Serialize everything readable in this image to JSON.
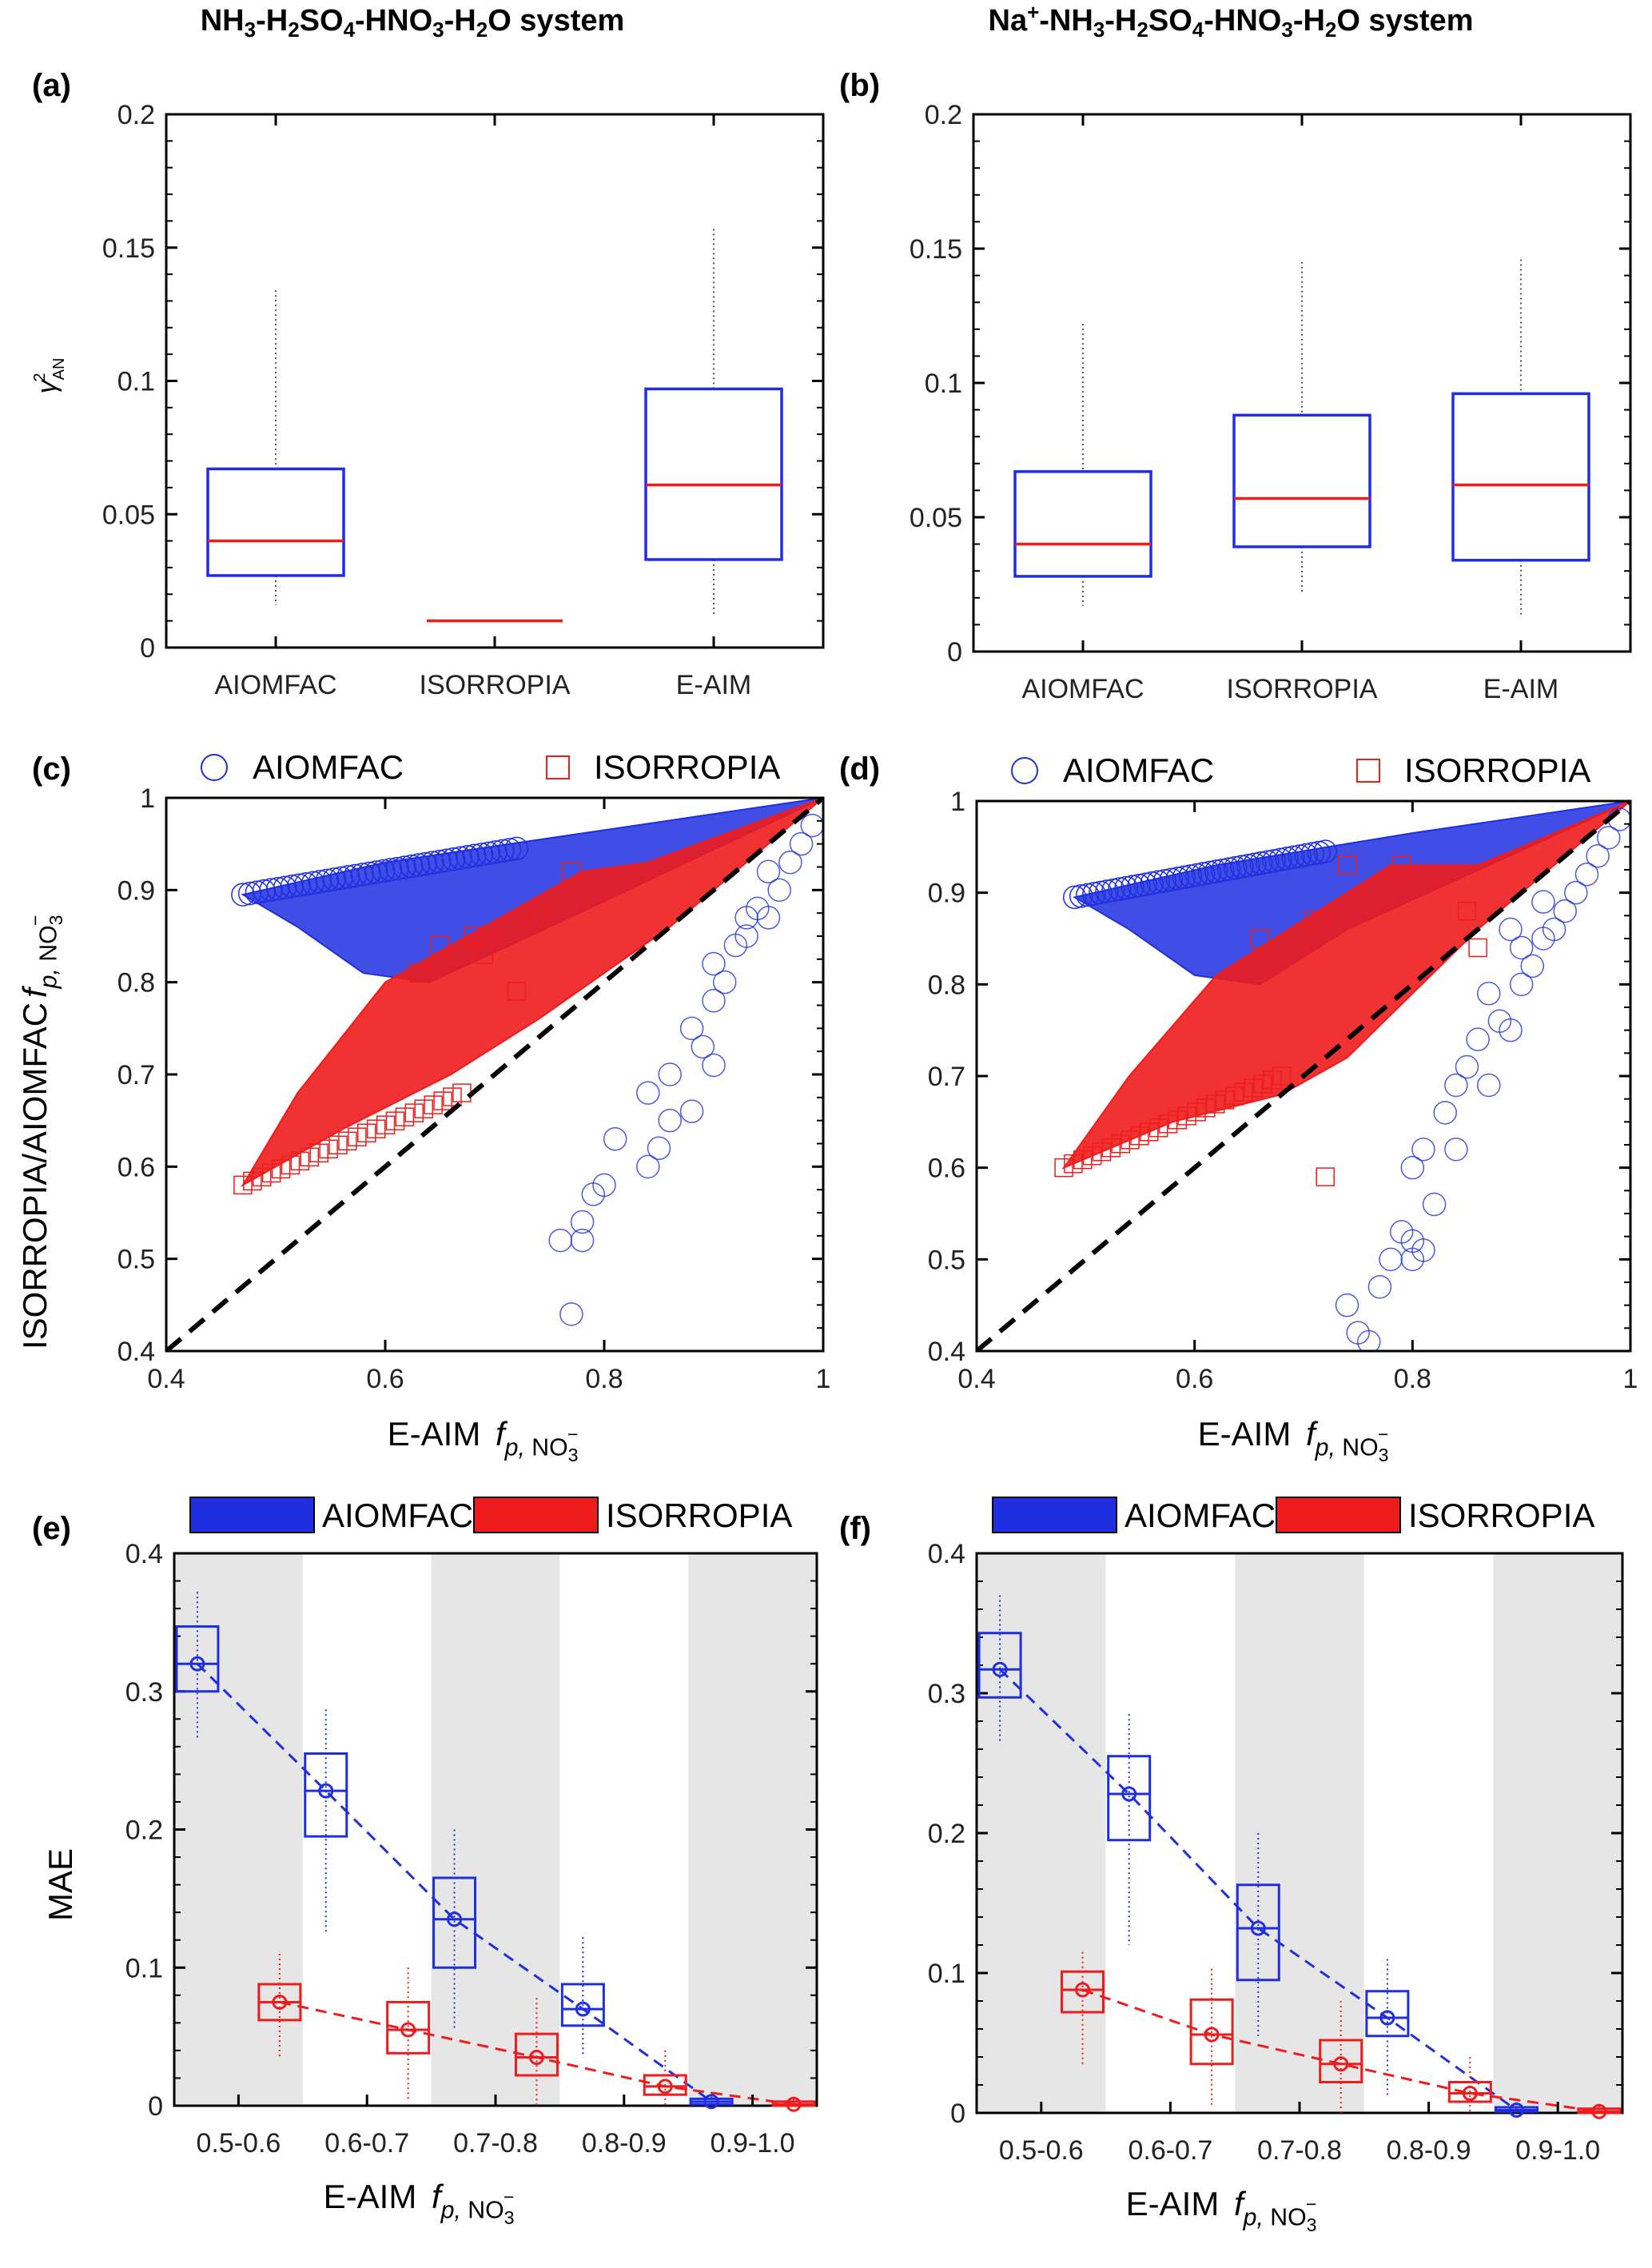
{
  "titles": {
    "left": "NH3-H2SO4-HNO3-H2O system",
    "right": "Na+-NH3-H2SO4-HNO3-H2O system"
  },
  "colors": {
    "blue": "#1f2fe0",
    "red": "#ee1c1c",
    "shade": "#e6e6e6",
    "black": "#000000"
  },
  "chart_data": [
    {
      "panel": "(a)",
      "type": "box",
      "ylabel": "γ²AN",
      "ylim": [
        0,
        0.2
      ],
      "yticks": [
        "0",
        "0.05",
        "0.1",
        "0.15",
        "0.2"
      ],
      "categories": [
        "AIOMFAC",
        "ISORROPIA",
        "E-AIM"
      ],
      "boxes": [
        {
          "min": 0.016,
          "q1": 0.027,
          "median": 0.04,
          "q3": 0.067,
          "max": 0.134
        },
        {
          "min": 0.01,
          "q1": 0.01,
          "median": 0.01,
          "q3": 0.01,
          "max": 0.01
        },
        {
          "min": 0.012,
          "q1": 0.033,
          "median": 0.061,
          "q3": 0.097,
          "max": 0.157
        }
      ]
    },
    {
      "panel": "(b)",
      "type": "box",
      "ylim": [
        0,
        0.2
      ],
      "yticks": [
        "0",
        "0.05",
        "0.1",
        "0.15",
        "0.2"
      ],
      "categories": [
        "AIOMFAC",
        "ISORROPIA",
        "E-AIM"
      ],
      "boxes": [
        {
          "min": 0.017,
          "q1": 0.028,
          "median": 0.04,
          "q3": 0.067,
          "max": 0.122
        },
        {
          "min": 0.022,
          "q1": 0.039,
          "median": 0.057,
          "q3": 0.088,
          "max": 0.145
        },
        {
          "min": 0.013,
          "q1": 0.034,
          "median": 0.062,
          "q3": 0.096,
          "max": 0.146
        }
      ]
    },
    {
      "panel": "(c)",
      "type": "scatter",
      "xlabel": "E-AIM  fp, NO3-",
      "ylabel": "ISORROPIA/AIOMFAC  fp, NO3-",
      "xlim": [
        0.4,
        1.0
      ],
      "ylim": [
        0.4,
        1.0
      ],
      "xticks": [
        "0.4",
        "0.6",
        "0.8",
        "1"
      ],
      "yticks": [
        "0.4",
        "0.5",
        "0.6",
        "0.7",
        "0.8",
        "0.9",
        "1"
      ],
      "legend": [
        "AIOMFAC",
        "ISORROPIA"
      ],
      "aiomfac_region": [
        [
          0.47,
          0.895
        ],
        [
          0.6,
          0.93
        ],
        [
          0.8,
          0.965
        ],
        [
          1.0,
          1.0
        ],
        [
          0.75,
          0.86
        ],
        [
          0.64,
          0.8
        ],
        [
          0.58,
          0.81
        ],
        [
          0.52,
          0.86
        ]
      ],
      "isorropia_region": [
        [
          0.47,
          0.58
        ],
        [
          0.56,
          0.64
        ],
        [
          0.66,
          0.7
        ],
        [
          0.74,
          0.76
        ],
        [
          0.86,
          0.86
        ],
        [
          1.0,
          1.0
        ],
        [
          0.84,
          0.93
        ],
        [
          0.78,
          0.92
        ],
        [
          0.6,
          0.8
        ],
        [
          0.52,
          0.68
        ]
      ],
      "aiomfac_points": [
        [
          0.77,
          0.44
        ],
        [
          0.76,
          0.52
        ],
        [
          0.78,
          0.52
        ],
        [
          0.78,
          0.54
        ],
        [
          0.79,
          0.57
        ],
        [
          0.8,
          0.58
        ],
        [
          0.81,
          0.63
        ],
        [
          0.84,
          0.6
        ],
        [
          0.85,
          0.62
        ],
        [
          0.86,
          0.65
        ],
        [
          0.84,
          0.68
        ],
        [
          0.86,
          0.7
        ],
        [
          0.88,
          0.66
        ],
        [
          0.9,
          0.71
        ],
        [
          0.89,
          0.73
        ],
        [
          0.88,
          0.75
        ],
        [
          0.9,
          0.78
        ],
        [
          0.91,
          0.8
        ],
        [
          0.9,
          0.82
        ],
        [
          0.92,
          0.84
        ],
        [
          0.93,
          0.85
        ],
        [
          0.93,
          0.87
        ],
        [
          0.95,
          0.87
        ],
        [
          0.94,
          0.88
        ],
        [
          0.96,
          0.9
        ],
        [
          0.95,
          0.92
        ],
        [
          0.97,
          0.93
        ],
        [
          0.98,
          0.95
        ],
        [
          0.99,
          0.97
        ]
      ],
      "isorropia_points": [
        [
          0.63,
          0.81
        ],
        [
          0.65,
          0.84
        ],
        [
          0.68,
          0.85
        ],
        [
          0.74,
          0.87
        ],
        [
          0.77,
          0.92
        ],
        [
          0.72,
          0.79
        ],
        [
          0.69,
          0.83
        ]
      ]
    },
    {
      "panel": "(d)",
      "type": "scatter",
      "xlabel": "E-AIM  fp, NO3-",
      "xlim": [
        0.4,
        1.0
      ],
      "ylim": [
        0.4,
        1.0
      ],
      "xticks": [
        "0.4",
        "0.6",
        "0.8",
        "1"
      ],
      "yticks": [
        "0.4",
        "0.5",
        "0.6",
        "0.7",
        "0.8",
        "0.9",
        "1"
      ],
      "legend": [
        "AIOMFAC",
        "ISORROPIA"
      ],
      "aiomfac_region": [
        [
          0.49,
          0.895
        ],
        [
          0.62,
          0.93
        ],
        [
          0.8,
          0.965
        ],
        [
          1.0,
          1.0
        ],
        [
          0.74,
          0.86
        ],
        [
          0.66,
          0.8
        ],
        [
          0.6,
          0.81
        ],
        [
          0.54,
          0.86
        ]
      ],
      "isorropia_region": [
        [
          0.48,
          0.6
        ],
        [
          0.58,
          0.65
        ],
        [
          0.68,
          0.68
        ],
        [
          0.74,
          0.72
        ],
        [
          0.86,
          0.86
        ],
        [
          1.0,
          1.0
        ],
        [
          0.86,
          0.93
        ],
        [
          0.78,
          0.93
        ],
        [
          0.62,
          0.81
        ],
        [
          0.54,
          0.7
        ]
      ],
      "aiomfac_points": [
        [
          0.76,
          0.41
        ],
        [
          0.75,
          0.42
        ],
        [
          0.74,
          0.45
        ],
        [
          0.77,
          0.47
        ],
        [
          0.78,
          0.5
        ],
        [
          0.8,
          0.5
        ],
        [
          0.81,
          0.51
        ],
        [
          0.79,
          0.53
        ],
        [
          0.8,
          0.52
        ],
        [
          0.82,
          0.56
        ],
        [
          0.8,
          0.6
        ],
        [
          0.81,
          0.62
        ],
        [
          0.84,
          0.62
        ],
        [
          0.83,
          0.66
        ],
        [
          0.84,
          0.69
        ],
        [
          0.85,
          0.71
        ],
        [
          0.87,
          0.69
        ],
        [
          0.86,
          0.74
        ],
        [
          0.88,
          0.76
        ],
        [
          0.89,
          0.75
        ],
        [
          0.87,
          0.79
        ],
        [
          0.9,
          0.8
        ],
        [
          0.91,
          0.82
        ],
        [
          0.9,
          0.84
        ],
        [
          0.92,
          0.85
        ],
        [
          0.93,
          0.86
        ],
        [
          0.94,
          0.88
        ],
        [
          0.95,
          0.9
        ],
        [
          0.96,
          0.92
        ],
        [
          0.97,
          0.94
        ],
        [
          0.98,
          0.96
        ],
        [
          0.99,
          0.98
        ],
        [
          0.92,
          0.89
        ],
        [
          0.89,
          0.86
        ]
      ],
      "isorropia_points": [
        [
          0.72,
          0.59
        ],
        [
          0.66,
          0.85
        ],
        [
          0.71,
          0.87
        ],
        [
          0.74,
          0.93
        ],
        [
          0.79,
          0.93
        ],
        [
          0.86,
          0.84
        ],
        [
          0.85,
          0.88
        ]
      ]
    },
    {
      "panel": "(e)",
      "type": "box",
      "xlabel": "E-AIM  fp, NO3-",
      "ylabel": "MAE",
      "ylim": [
        0,
        0.4
      ],
      "yticks": [
        "0",
        "0.1",
        "0.2",
        "0.3",
        "0.4"
      ],
      "categories": [
        "0.5-0.6",
        "0.6-0.7",
        "0.7-0.8",
        "0.8-0.9",
        "0.9-1.0"
      ],
      "legend": [
        "AIOMFAC",
        "ISORROPIA"
      ],
      "series": [
        {
          "name": "AIOMFAC",
          "boxes": [
            {
              "min": 0.265,
              "q1": 0.3,
              "median": 0.32,
              "mean": 0.32,
              "q3": 0.347,
              "max": 0.372
            },
            {
              "min": 0.125,
              "q1": 0.195,
              "median": 0.228,
              "mean": 0.228,
              "q3": 0.255,
              "max": 0.287
            },
            {
              "min": 0.055,
              "q1": 0.1,
              "median": 0.135,
              "mean": 0.135,
              "q3": 0.165,
              "max": 0.2
            },
            {
              "min": 0.035,
              "q1": 0.058,
              "median": 0.07,
              "mean": 0.07,
              "q3": 0.088,
              "max": 0.122
            },
            {
              "min": 0.0,
              "q1": 0.001,
              "median": 0.003,
              "mean": 0.003,
              "q3": 0.005,
              "max": 0.01
            }
          ]
        },
        {
          "name": "ISORROPIA",
          "boxes": [
            {
              "min": 0.035,
              "q1": 0.062,
              "median": 0.075,
              "mean": 0.075,
              "q3": 0.088,
              "max": 0.11
            },
            {
              "min": 0.005,
              "q1": 0.038,
              "median": 0.055,
              "mean": 0.055,
              "q3": 0.075,
              "max": 0.1
            },
            {
              "min": 0.0,
              "q1": 0.022,
              "median": 0.035,
              "mean": 0.035,
              "q3": 0.052,
              "max": 0.078
            },
            {
              "min": 0.0,
              "q1": 0.008,
              "median": 0.014,
              "mean": 0.014,
              "q3": 0.022,
              "max": 0.04
            },
            {
              "min": 0.0,
              "q1": 0.0,
              "median": 0.001,
              "mean": 0.001,
              "q3": 0.003,
              "max": 0.005
            }
          ]
        }
      ]
    },
    {
      "panel": "(f)",
      "type": "box",
      "xlabel": "E-AIM  fp, NO3-",
      "ylim": [
        0,
        0.4
      ],
      "yticks": [
        "0",
        "0.1",
        "0.2",
        "0.3",
        "0.4"
      ],
      "categories": [
        "0.5-0.6",
        "0.6-0.7",
        "0.7-0.8",
        "0.8-0.9",
        "0.9-1.0"
      ],
      "legend": [
        "AIOMFAC",
        "ISORROPIA"
      ],
      "series": [
        {
          "name": "AIOMFAC",
          "boxes": [
            {
              "min": 0.265,
              "q1": 0.297,
              "median": 0.317,
              "mean": 0.317,
              "q3": 0.343,
              "max": 0.37
            },
            {
              "min": 0.12,
              "q1": 0.195,
              "median": 0.228,
              "mean": 0.228,
              "q3": 0.255,
              "max": 0.285
            },
            {
              "min": 0.055,
              "q1": 0.095,
              "median": 0.132,
              "mean": 0.132,
              "q3": 0.163,
              "max": 0.2
            },
            {
              "min": 0.012,
              "q1": 0.055,
              "median": 0.068,
              "mean": 0.068,
              "q3": 0.087,
              "max": 0.11
            },
            {
              "min": 0.0,
              "q1": 0.001,
              "median": 0.002,
              "mean": 0.002,
              "q3": 0.004,
              "max": 0.01
            }
          ]
        },
        {
          "name": "ISORROPIA",
          "boxes": [
            {
              "min": 0.035,
              "q1": 0.072,
              "median": 0.088,
              "mean": 0.088,
              "q3": 0.101,
              "max": 0.115
            },
            {
              "min": 0.005,
              "q1": 0.035,
              "median": 0.056,
              "mean": 0.056,
              "q3": 0.081,
              "max": 0.103
            },
            {
              "min": 0.0,
              "q1": 0.022,
              "median": 0.035,
              "mean": 0.035,
              "q3": 0.052,
              "max": 0.08
            },
            {
              "min": 0.0,
              "q1": 0.008,
              "median": 0.014,
              "mean": 0.014,
              "q3": 0.022,
              "max": 0.04
            },
            {
              "min": 0.0,
              "q1": 0.0,
              "median": 0.001,
              "mean": 0.001,
              "q3": 0.003,
              "max": 0.005
            }
          ]
        }
      ]
    }
  ]
}
